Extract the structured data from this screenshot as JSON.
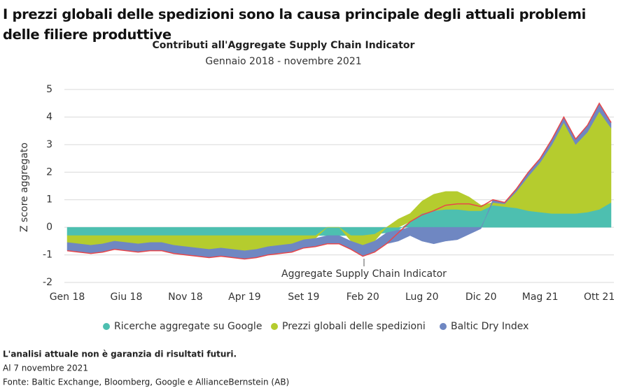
{
  "chart_data": {
    "type": "stacked_area",
    "heading": "I prezzi globali delle spedizioni sono la causa principale degli attuali problemi delle filiere produttive",
    "title": "Contributi all'Aggregate Supply Chain Indicator",
    "subtitle": "Gennaio 2018 - novembre 2021",
    "y_label": "Z score aggregato",
    "annotation": "Aggregate Supply Chain Indicator",
    "categories": [
      "Gen 18",
      null,
      null,
      null,
      null,
      "Giu 18",
      null,
      null,
      null,
      null,
      "Nov 18",
      null,
      null,
      null,
      null,
      "Apr 19",
      null,
      null,
      null,
      null,
      "Set 19",
      null,
      null,
      null,
      null,
      "Feb 20",
      null,
      null,
      null,
      null,
      "Lug 20",
      null,
      null,
      null,
      null,
      "Dic 20",
      null,
      null,
      null,
      null,
      "Mag 21",
      null,
      null,
      null,
      null,
      "Ott 21",
      null
    ],
    "series": [
      {
        "name": "Ricerche aggregate su Google",
        "color": "#4dbfb0",
        "values": [
          -0.3,
          -0.3,
          -0.3,
          -0.3,
          -0.3,
          -0.3,
          -0.3,
          -0.3,
          -0.3,
          -0.3,
          -0.3,
          -0.3,
          -0.3,
          -0.3,
          -0.3,
          -0.3,
          -0.3,
          -0.3,
          -0.3,
          -0.3,
          -0.3,
          -0.3,
          -0.3,
          -0.3,
          -0.3,
          -0.3,
          -0.25,
          -0.2,
          -0.1,
          0.2,
          0.5,
          0.6,
          0.65,
          0.65,
          0.6,
          0.6,
          0.8,
          0.75,
          0.7,
          0.6,
          0.55,
          0.5,
          0.5,
          0.5,
          0.55,
          0.65,
          0.9
        ]
      },
      {
        "name": "Prezzi globali delle spedizioni",
        "color": "#b5cc2e",
        "values": [
          -0.25,
          -0.3,
          -0.35,
          -0.3,
          -0.2,
          -0.25,
          -0.3,
          -0.25,
          -0.25,
          -0.35,
          -0.4,
          -0.45,
          -0.5,
          -0.45,
          -0.5,
          -0.55,
          -0.5,
          -0.4,
          -0.35,
          -0.3,
          -0.15,
          -0.1,
          0.0,
          0.0,
          -0.2,
          -0.35,
          -0.25,
          0.0,
          0.3,
          0.3,
          0.45,
          0.6,
          0.65,
          0.65,
          0.5,
          0.2,
          0.1,
          0.1,
          0.6,
          1.25,
          1.8,
          2.5,
          3.3,
          2.5,
          2.9,
          3.55,
          2.7
        ]
      },
      {
        "name": "Baltic Dry Index",
        "color": "#6f87c2",
        "values": [
          -0.3,
          -0.3,
          -0.3,
          -0.3,
          -0.3,
          -0.3,
          -0.3,
          -0.3,
          -0.3,
          -0.3,
          -0.3,
          -0.3,
          -0.3,
          -0.3,
          -0.3,
          -0.3,
          -0.3,
          -0.3,
          -0.3,
          -0.3,
          -0.3,
          -0.3,
          -0.3,
          -0.3,
          -0.3,
          -0.4,
          -0.4,
          -0.4,
          -0.4,
          -0.3,
          -0.5,
          -0.6,
          -0.5,
          -0.45,
          -0.25,
          -0.05,
          0.1,
          0.05,
          0.1,
          0.15,
          0.15,
          0.2,
          0.2,
          0.2,
          0.25,
          0.3,
          0.2
        ]
      }
    ],
    "aggregate": {
      "color": "#e8464a",
      "values": [
        -0.85,
        -0.9,
        -0.95,
        -0.9,
        -0.8,
        -0.85,
        -0.9,
        -0.85,
        -0.85,
        -0.95,
        -1.0,
        -1.05,
        -1.1,
        -1.05,
        -1.1,
        -1.15,
        -1.1,
        -1.0,
        -0.95,
        -0.9,
        -0.75,
        -0.7,
        -0.6,
        -0.6,
        -0.8,
        -1.05,
        -0.9,
        -0.6,
        -0.2,
        0.2,
        0.45,
        0.6,
        0.8,
        0.85,
        0.85,
        0.75,
        1.0,
        0.9,
        1.4,
        2.0,
        2.5,
        3.2,
        4.0,
        3.2,
        3.7,
        4.5,
        3.8
      ]
    },
    "ylim": [
      -2,
      5
    ],
    "yticks": [
      -2,
      -1,
      0,
      1,
      2,
      3,
      4,
      5
    ],
    "grid": true,
    "notes": [
      "L'analisi attuale non è garanzia di risultati futuri.",
      "Al 7 novembre 2021",
      "Fonte: Baltic Exchange, Bloomberg, Google e AllianceBernstein (AB)"
    ]
  }
}
